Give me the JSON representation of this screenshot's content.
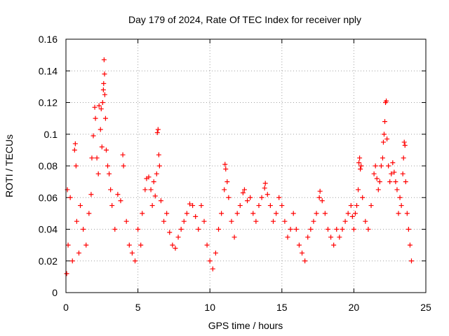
{
  "chart_data": {
    "type": "scatter",
    "title": "Day 179 of 2024, Rate Of TEC Index for receiver nply",
    "xlabel": "GPS time / hours",
    "ylabel": "ROTI / TECUs",
    "xlim": [
      0,
      25
    ],
    "ylim": [
      0,
      0.16
    ],
    "xticks": [
      0,
      5,
      10,
      15,
      20,
      25
    ],
    "xtick_labels": [
      "0",
      "5",
      "10",
      "15",
      "20",
      "25"
    ],
    "yticks": [
      0,
      0.02,
      0.04,
      0.06,
      0.08,
      0.1,
      0.12,
      0.14,
      0.16
    ],
    "ytick_labels": [
      "0",
      "0.02",
      "0.04",
      "0.06",
      "0.08",
      "0.1",
      "0.12",
      "0.14",
      "0.16"
    ],
    "grid": true,
    "marker": "plus",
    "color": "#ff0000",
    "series": [
      {
        "name": "ROTI",
        "points": [
          [
            0.05,
            0.012
          ],
          [
            0.1,
            0.065
          ],
          [
            0.15,
            0.03
          ],
          [
            0.3,
            0.06
          ],
          [
            0.45,
            0.02
          ],
          [
            0.6,
            0.09
          ],
          [
            0.65,
            0.094
          ],
          [
            0.7,
            0.08
          ],
          [
            0.75,
            0.045
          ],
          [
            0.9,
            0.025
          ],
          [
            1.0,
            0.055
          ],
          [
            1.2,
            0.04
          ],
          [
            1.4,
            0.03
          ],
          [
            1.6,
            0.05
          ],
          [
            1.75,
            0.062
          ],
          [
            1.8,
            0.085
          ],
          [
            1.9,
            0.099
          ],
          [
            2.0,
            0.117
          ],
          [
            2.05,
            0.11
          ],
          [
            2.15,
            0.085
          ],
          [
            2.25,
            0.075
          ],
          [
            2.3,
            0.118
          ],
          [
            2.4,
            0.103
          ],
          [
            2.45,
            0.116
          ],
          [
            2.5,
            0.092
          ],
          [
            2.55,
            0.12
          ],
          [
            2.6,
            0.128
          ],
          [
            2.62,
            0.132
          ],
          [
            2.65,
            0.147
          ],
          [
            2.68,
            0.138
          ],
          [
            2.7,
            0.125
          ],
          [
            2.75,
            0.11
          ],
          [
            2.8,
            0.09
          ],
          [
            2.9,
            0.08
          ],
          [
            3.0,
            0.075
          ],
          [
            3.1,
            0.065
          ],
          [
            3.2,
            0.055
          ],
          [
            3.4,
            0.04
          ],
          [
            3.6,
            0.062
          ],
          [
            3.8,
            0.058
          ],
          [
            3.95,
            0.087
          ],
          [
            4.0,
            0.08
          ],
          [
            4.2,
            0.045
          ],
          [
            4.4,
            0.03
          ],
          [
            4.6,
            0.025
          ],
          [
            4.8,
            0.02
          ],
          [
            5.0,
            0.04
          ],
          [
            5.2,
            0.03
          ],
          [
            5.3,
            0.05
          ],
          [
            5.5,
            0.065
          ],
          [
            5.6,
            0.072
          ],
          [
            5.75,
            0.073
          ],
          [
            5.9,
            0.065
          ],
          [
            6.0,
            0.055
          ],
          [
            6.1,
            0.07
          ],
          [
            6.2,
            0.061
          ],
          [
            6.3,
            0.075
          ],
          [
            6.35,
            0.101
          ],
          [
            6.4,
            0.103
          ],
          [
            6.45,
            0.087
          ],
          [
            6.5,
            0.08
          ],
          [
            6.6,
            0.058
          ],
          [
            6.8,
            0.045
          ],
          [
            7.0,
            0.05
          ],
          [
            7.2,
            0.038
          ],
          [
            7.4,
            0.03
          ],
          [
            7.6,
            0.028
          ],
          [
            7.8,
            0.035
          ],
          [
            8.0,
            0.04
          ],
          [
            8.2,
            0.045
          ],
          [
            8.4,
            0.05
          ],
          [
            8.6,
            0.056
          ],
          [
            8.8,
            0.055
          ],
          [
            9.0,
            0.048
          ],
          [
            9.2,
            0.04
          ],
          [
            9.4,
            0.055
          ],
          [
            9.6,
            0.045
          ],
          [
            9.8,
            0.03
          ],
          [
            10.0,
            0.02
          ],
          [
            10.2,
            0.015
          ],
          [
            10.4,
            0.025
          ],
          [
            10.6,
            0.04
          ],
          [
            10.8,
            0.05
          ],
          [
            11.0,
            0.065
          ],
          [
            11.05,
            0.081
          ],
          [
            11.1,
            0.078
          ],
          [
            11.2,
            0.07
          ],
          [
            11.3,
            0.06
          ],
          [
            11.5,
            0.045
          ],
          [
            11.7,
            0.035
          ],
          [
            11.9,
            0.05
          ],
          [
            12.1,
            0.055
          ],
          [
            12.3,
            0.063
          ],
          [
            12.4,
            0.065
          ],
          [
            12.6,
            0.058
          ],
          [
            12.8,
            0.06
          ],
          [
            13.0,
            0.05
          ],
          [
            13.2,
            0.045
          ],
          [
            13.4,
            0.055
          ],
          [
            13.6,
            0.06
          ],
          [
            13.8,
            0.066
          ],
          [
            13.85,
            0.069
          ],
          [
            14.0,
            0.062
          ],
          [
            14.2,
            0.055
          ],
          [
            14.4,
            0.045
          ],
          [
            14.6,
            0.05
          ],
          [
            14.8,
            0.06
          ],
          [
            15.0,
            0.055
          ],
          [
            15.2,
            0.045
          ],
          [
            15.4,
            0.035
          ],
          [
            15.6,
            0.04
          ],
          [
            15.8,
            0.05
          ],
          [
            16.0,
            0.04
          ],
          [
            16.2,
            0.03
          ],
          [
            16.4,
            0.025
          ],
          [
            16.6,
            0.02
          ],
          [
            16.8,
            0.035
          ],
          [
            17.0,
            0.04
          ],
          [
            17.2,
            0.045
          ],
          [
            17.4,
            0.05
          ],
          [
            17.6,
            0.06
          ],
          [
            17.65,
            0.064
          ],
          [
            17.8,
            0.058
          ],
          [
            18.0,
            0.05
          ],
          [
            18.2,
            0.04
          ],
          [
            18.4,
            0.035
          ],
          [
            18.6,
            0.03
          ],
          [
            18.8,
            0.04
          ],
          [
            19.0,
            0.035
          ],
          [
            19.2,
            0.04
          ],
          [
            19.4,
            0.045
          ],
          [
            19.6,
            0.05
          ],
          [
            19.8,
            0.055
          ],
          [
            19.9,
            0.048
          ],
          [
            20.0,
            0.04
          ],
          [
            20.1,
            0.05
          ],
          [
            20.2,
            0.055
          ],
          [
            20.3,
            0.065
          ],
          [
            20.35,
            0.082
          ],
          [
            20.4,
            0.085
          ],
          [
            20.45,
            0.078
          ],
          [
            20.5,
            0.08
          ],
          [
            20.6,
            0.06
          ],
          [
            20.8,
            0.045
          ],
          [
            21.0,
            0.04
          ],
          [
            21.2,
            0.055
          ],
          [
            21.4,
            0.075
          ],
          [
            21.5,
            0.08
          ],
          [
            21.6,
            0.072
          ],
          [
            21.7,
            0.065
          ],
          [
            21.8,
            0.07
          ],
          [
            21.9,
            0.08
          ],
          [
            22.0,
            0.085
          ],
          [
            22.05,
            0.095
          ],
          [
            22.1,
            0.1
          ],
          [
            22.15,
            0.108
          ],
          [
            22.2,
            0.12
          ],
          [
            22.25,
            0.121
          ],
          [
            22.3,
            0.097
          ],
          [
            22.4,
            0.08
          ],
          [
            22.5,
            0.07
          ],
          [
            22.6,
            0.075
          ],
          [
            22.7,
            0.082
          ],
          [
            22.8,
            0.076
          ],
          [
            22.9,
            0.07
          ],
          [
            23.0,
            0.065
          ],
          [
            23.1,
            0.05
          ],
          [
            23.2,
            0.06
          ],
          [
            23.3,
            0.055
          ],
          [
            23.4,
            0.075
          ],
          [
            23.45,
            0.085
          ],
          [
            23.5,
            0.095
          ],
          [
            23.55,
            0.093
          ],
          [
            23.6,
            0.07
          ],
          [
            23.7,
            0.05
          ],
          [
            23.8,
            0.04
          ],
          [
            23.9,
            0.03
          ],
          [
            24.0,
            0.02
          ]
        ]
      }
    ]
  }
}
